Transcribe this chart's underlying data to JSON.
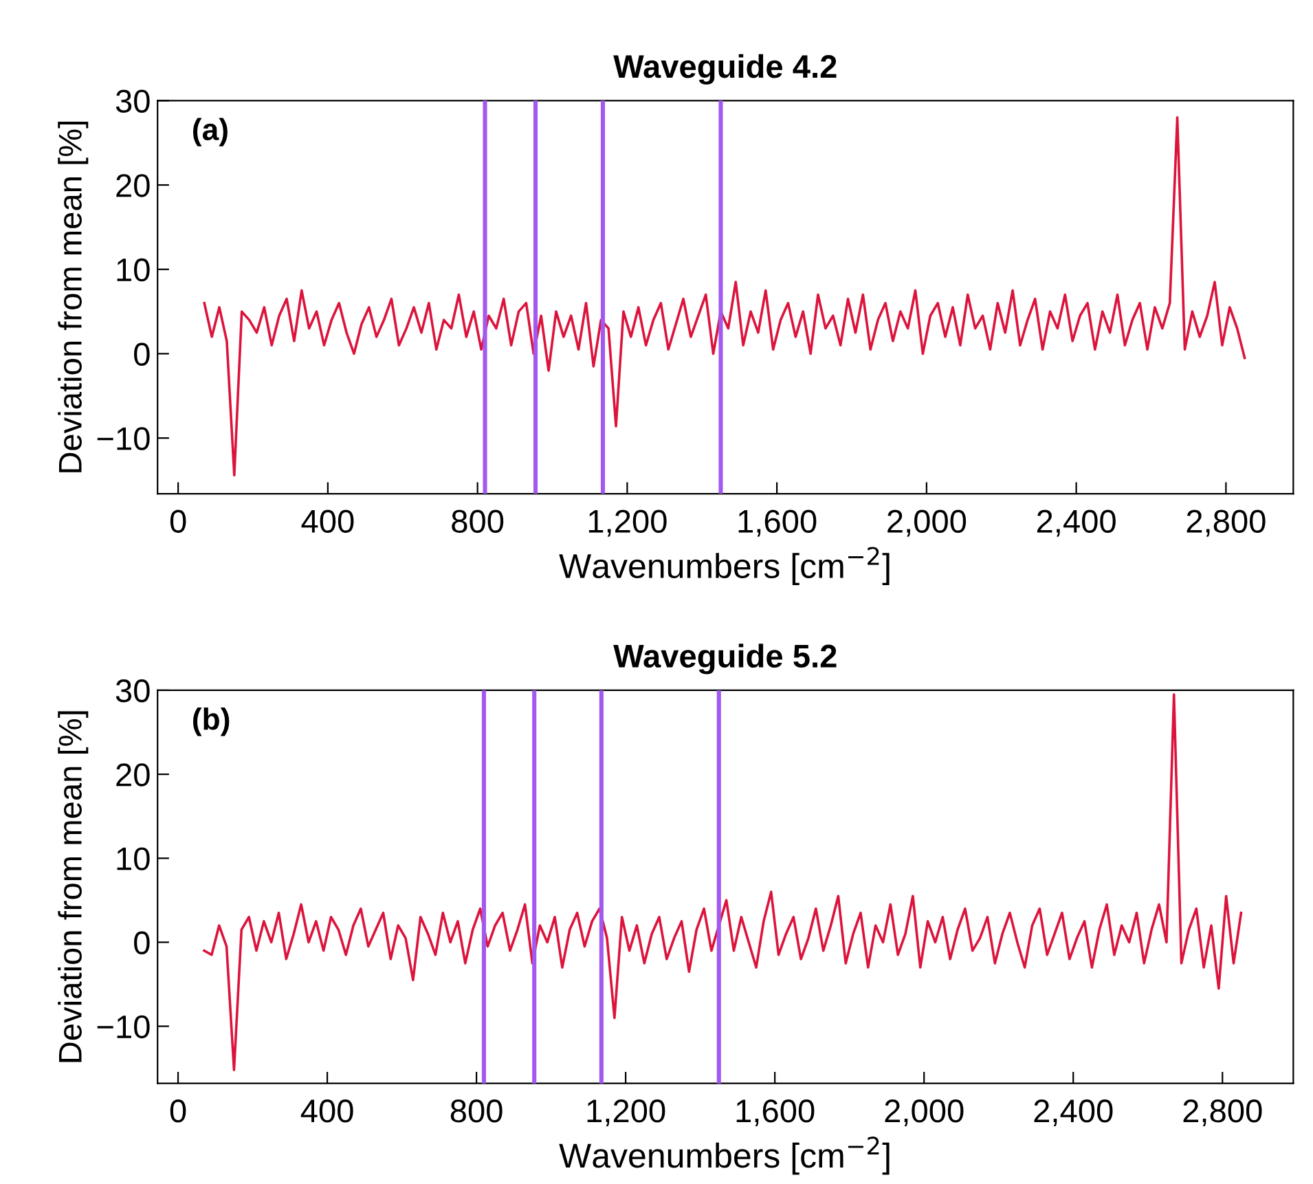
{
  "chart_data": [
    {
      "type": "line",
      "title": "Waveguide 4.2",
      "xlabel": "Wavenumbers [cm$^{−2}$]",
      "ylabel": "Deviation from mean [%]",
      "annotations": [
        "(a)"
      ],
      "xlim": [
        -55,
        2980
      ],
      "ylim": [
        -16.6,
        30
      ],
      "xticks": [
        0,
        400,
        800,
        {
          "value": 1200,
          "label": "1,200"
        },
        {
          "value": 1600,
          "label": "1,600"
        },
        {
          "value": 2000,
          "label": "2,000"
        },
        {
          "value": 2400,
          "label": "2,400"
        },
        {
          "value": 2800,
          "label": "2,800"
        }
      ],
      "yticks": [
        {
          "value": -10,
          "label": "−10"
        },
        0,
        10,
        20,
        30
      ],
      "grid": false,
      "ref_lines": [
        {
          "axis": "x",
          "value": 820,
          "color": "#a259f0"
        },
        {
          "axis": "x",
          "value": 955,
          "color": "#a259f0"
        },
        {
          "axis": "x",
          "value": 1135,
          "color": "#a259f0"
        },
        {
          "axis": "x",
          "value": 1450,
          "color": "#a259f0"
        }
      ],
      "series": [
        {
          "color": "#dc143c",
          "x": [
            70,
            90,
            110,
            130,
            150,
            170,
            190,
            210,
            230,
            250,
            270,
            290,
            310,
            330,
            350,
            370,
            390,
            410,
            430,
            450,
            470,
            490,
            510,
            530,
            550,
            570,
            590,
            610,
            630,
            650,
            670,
            690,
            710,
            730,
            750,
            770,
            790,
            810,
            830,
            850,
            870,
            890,
            910,
            930,
            950,
            970,
            990,
            1010,
            1030,
            1050,
            1070,
            1090,
            1110,
            1130,
            1150,
            1170,
            1190,
            1210,
            1230,
            1250,
            1270,
            1290,
            1310,
            1330,
            1350,
            1370,
            1390,
            1410,
            1430,
            1450,
            1470,
            1490,
            1510,
            1530,
            1550,
            1570,
            1590,
            1610,
            1630,
            1650,
            1670,
            1690,
            1710,
            1730,
            1750,
            1770,
            1790,
            1810,
            1830,
            1850,
            1870,
            1890,
            1910,
            1930,
            1950,
            1970,
            1990,
            2010,
            2030,
            2050,
            2070,
            2090,
            2110,
            2130,
            2150,
            2170,
            2190,
            2210,
            2230,
            2250,
            2270,
            2290,
            2310,
            2330,
            2350,
            2370,
            2390,
            2410,
            2430,
            2450,
            2470,
            2490,
            2510,
            2530,
            2550,
            2570,
            2590,
            2610,
            2630,
            2650,
            2670,
            2690,
            2710,
            2730,
            2750,
            2770,
            2790,
            2810,
            2830,
            2850
          ],
          "values": [
            6,
            2,
            5.5,
            1.5,
            -14.4,
            5,
            4,
            2.5,
            5.5,
            1,
            4.5,
            6.5,
            1.5,
            7.5,
            3,
            5,
            1,
            4,
            6,
            2.5,
            0,
            3.5,
            5.5,
            2,
            4,
            6.5,
            1,
            3,
            5.5,
            2.5,
            6,
            0.5,
            4,
            3,
            7,
            2,
            5,
            0.5,
            4.5,
            3,
            6.5,
            1,
            5,
            6,
            0,
            4.5,
            -2,
            5,
            2,
            4.5,
            0.5,
            6,
            -1.5,
            4,
            3,
            -8.6,
            5,
            2,
            5.5,
            1,
            4,
            6,
            0.5,
            3.5,
            6.5,
            2,
            4.5,
            7,
            0,
            5,
            3,
            8.5,
            1,
            5,
            2.5,
            7.5,
            0.5,
            4,
            6,
            2,
            5,
            0,
            7,
            3,
            4.5,
            1,
            6.5,
            2.5,
            7,
            0.5,
            4,
            6,
            1.5,
            5,
            3,
            7.5,
            0,
            4.5,
            6,
            2,
            5.5,
            1,
            7,
            3,
            4.5,
            0.5,
            6,
            2.5,
            7.5,
            1,
            4,
            6.5,
            0.5,
            5,
            3,
            7,
            1.5,
            4.5,
            6,
            0.5,
            5,
            2.5,
            7,
            1,
            4,
            6,
            0.5,
            5.5,
            3,
            6,
            28,
            0.5,
            5,
            2,
            4.5,
            8.5,
            1,
            5.5,
            3,
            -0.5
          ]
        }
      ]
    },
    {
      "type": "line",
      "title": "Waveguide 5.2",
      "xlabel": "Wavenumbers [cm$^{−2}$]",
      "ylabel": "Deviation from mean [%]",
      "annotations": [
        "(b)"
      ],
      "xlim": [
        -55,
        2990
      ],
      "ylim": [
        -16.8,
        30
      ],
      "xticks": [
        0,
        400,
        800,
        {
          "value": 1200,
          "label": "1,200"
        },
        {
          "value": 1600,
          "label": "1,600"
        },
        {
          "value": 2000,
          "label": "2,000"
        },
        {
          "value": 2400,
          "label": "2,400"
        },
        {
          "value": 2800,
          "label": "2,800"
        }
      ],
      "yticks": [
        {
          "value": -10,
          "label": "−10"
        },
        0,
        10,
        20,
        30
      ],
      "grid": false,
      "ref_lines": [
        {
          "axis": "x",
          "value": 820,
          "color": "#a259f0"
        },
        {
          "axis": "x",
          "value": 955,
          "color": "#a259f0"
        },
        {
          "axis": "x",
          "value": 1135,
          "color": "#a259f0"
        },
        {
          "axis": "x",
          "value": 1450,
          "color": "#a259f0"
        }
      ],
      "series": [
        {
          "color": "#dc143c",
          "x": [
            70,
            90,
            110,
            130,
            150,
            170,
            190,
            210,
            230,
            250,
            270,
            290,
            310,
            330,
            350,
            370,
            390,
            410,
            430,
            450,
            470,
            490,
            510,
            530,
            550,
            570,
            590,
            610,
            630,
            650,
            670,
            690,
            710,
            730,
            750,
            770,
            790,
            810,
            830,
            850,
            870,
            890,
            910,
            930,
            950,
            970,
            990,
            1010,
            1030,
            1050,
            1070,
            1090,
            1110,
            1130,
            1150,
            1170,
            1190,
            1210,
            1230,
            1250,
            1270,
            1290,
            1310,
            1330,
            1350,
            1370,
            1390,
            1410,
            1430,
            1450,
            1470,
            1490,
            1510,
            1530,
            1550,
            1570,
            1590,
            1610,
            1630,
            1650,
            1670,
            1690,
            1710,
            1730,
            1750,
            1770,
            1790,
            1810,
            1830,
            1850,
            1870,
            1890,
            1910,
            1930,
            1950,
            1970,
            1990,
            2010,
            2030,
            2050,
            2070,
            2090,
            2110,
            2130,
            2150,
            2170,
            2190,
            2210,
            2230,
            2250,
            2270,
            2290,
            2310,
            2330,
            2350,
            2370,
            2390,
            2410,
            2430,
            2450,
            2470,
            2490,
            2510,
            2530,
            2550,
            2570,
            2590,
            2610,
            2630,
            2650,
            2670,
            2690,
            2710,
            2730,
            2750,
            2770,
            2790,
            2810,
            2830,
            2850
          ],
          "values": [
            -1,
            -1.5,
            2,
            -0.5,
            -15.2,
            1.5,
            3,
            -1,
            2.5,
            0,
            3.5,
            -2,
            1,
            4.5,
            0,
            2.5,
            -1,
            3,
            1.5,
            -1.5,
            2,
            4,
            -0.5,
            1.5,
            3.5,
            -2,
            2,
            0.5,
            -4.5,
            3,
            1,
            -1.5,
            3.5,
            0,
            2.5,
            -2.5,
            1.5,
            4,
            -0.5,
            2,
            3.5,
            -1,
            1.5,
            4.5,
            -2.5,
            2,
            0,
            3,
            -3,
            1.5,
            3.5,
            -0.5,
            2.5,
            4,
            0.5,
            -9,
            3,
            -1,
            2,
            -2.5,
            1,
            3,
            -2,
            0.5,
            2.5,
            -3.5,
            1.5,
            4,
            -1,
            2,
            5,
            -1,
            3,
            0,
            -3,
            2.5,
            6,
            -1.5,
            1,
            3,
            -2,
            0.5,
            4,
            -1,
            2,
            5.5,
            -2.5,
            1,
            3.5,
            -3,
            2,
            0,
            4.5,
            -1.5,
            1,
            5.5,
            -3,
            2.5,
            0,
            3,
            -2,
            1.5,
            4,
            -1,
            0.5,
            3,
            -2.5,
            1,
            3.5,
            0,
            -3,
            2,
            4,
            -1.5,
            1,
            3.5,
            -2,
            0.5,
            2.5,
            -3,
            1.5,
            4.5,
            -1.5,
            2,
            0,
            3.5,
            -2.5,
            1.5,
            4.5,
            0,
            29.5,
            -2.5,
            1.5,
            4,
            -3,
            2,
            -5.5,
            5.5,
            -2.5,
            3.5
          ]
        }
      ]
    }
  ]
}
